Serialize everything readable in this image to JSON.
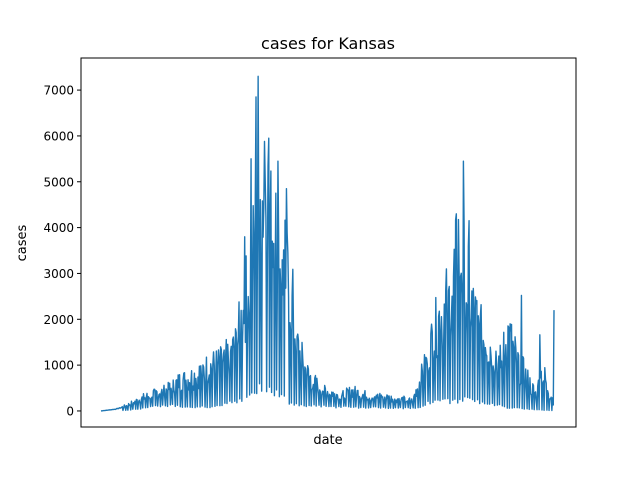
{
  "chart_data": {
    "type": "line",
    "title": "cases for Kansas",
    "xlabel": "date",
    "ylabel": "cases",
    "ylim": [
      -350,
      7700
    ],
    "yticks": [
      0,
      1000,
      2000,
      3000,
      4000,
      5000,
      6000,
      7000
    ],
    "xtick_labels": [],
    "grid": false,
    "line_color": "#1f77b4",
    "envelope": {
      "x": [
        0,
        20,
        35,
        45,
        60,
        75,
        90,
        100,
        110,
        125,
        140,
        155,
        170,
        180,
        190,
        200,
        212,
        222,
        232,
        240,
        247,
        255,
        263,
        270,
        278,
        290,
        300,
        310,
        325,
        340,
        355,
        370,
        382,
        395,
        410,
        425,
        440,
        450,
        460,
        470,
        478,
        486,
        495,
        505,
        515,
        525,
        535,
        545,
        555,
        565,
        575,
        585,
        595,
        605,
        610,
        615,
        620,
        625,
        632,
        640
      ],
      "low": [
        0,
        5,
        20,
        40,
        80,
        120,
        150,
        160,
        140,
        120,
        110,
        120,
        150,
        200,
        280,
        320,
        420,
        600,
        700,
        650,
        500,
        400,
        280,
        180,
        160,
        150,
        140,
        130,
        120,
        110,
        110,
        100,
        100,
        90,
        80,
        80,
        70,
        100,
        200,
        320,
        350,
        300,
        260,
        260,
        320,
        300,
        260,
        230,
        180,
        140,
        90,
        80,
        60,
        50,
        40,
        30,
        30,
        20,
        20,
        10
      ],
      "high": [
        0,
        60,
        150,
        250,
        400,
        500,
        600,
        700,
        900,
        1000,
        1200,
        1400,
        1500,
        1700,
        2000,
        3000,
        4500,
        6000,
        7300,
        5800,
        5900,
        5000,
        4200,
        3500,
        2000,
        1200,
        900,
        700,
        550,
        450,
        600,
        500,
        400,
        450,
        380,
        350,
        300,
        900,
        1500,
        2400,
        2900,
        3300,
        3500,
        5450,
        4200,
        3200,
        2500,
        2200,
        1900,
        1500,
        2500,
        1800,
        1300,
        900,
        700,
        500,
        2200,
        1200,
        700,
        300
      ]
    },
    "peaks": [
      {
        "x": 222,
        "y": 7300
      },
      {
        "x": 219,
        "y": 6850
      },
      {
        "x": 237,
        "y": 5950
      },
      {
        "x": 231,
        "y": 5880
      },
      {
        "x": 212,
        "y": 5500
      },
      {
        "x": 250,
        "y": 5450
      },
      {
        "x": 262,
        "y": 4850
      },
      {
        "x": 203,
        "y": 3800
      },
      {
        "x": 512,
        "y": 5450
      },
      {
        "x": 502,
        "y": 4300
      },
      {
        "x": 520,
        "y": 4150
      },
      {
        "x": 594,
        "y": 2520
      },
      {
        "x": 640,
        "y": 2200
      }
    ]
  }
}
